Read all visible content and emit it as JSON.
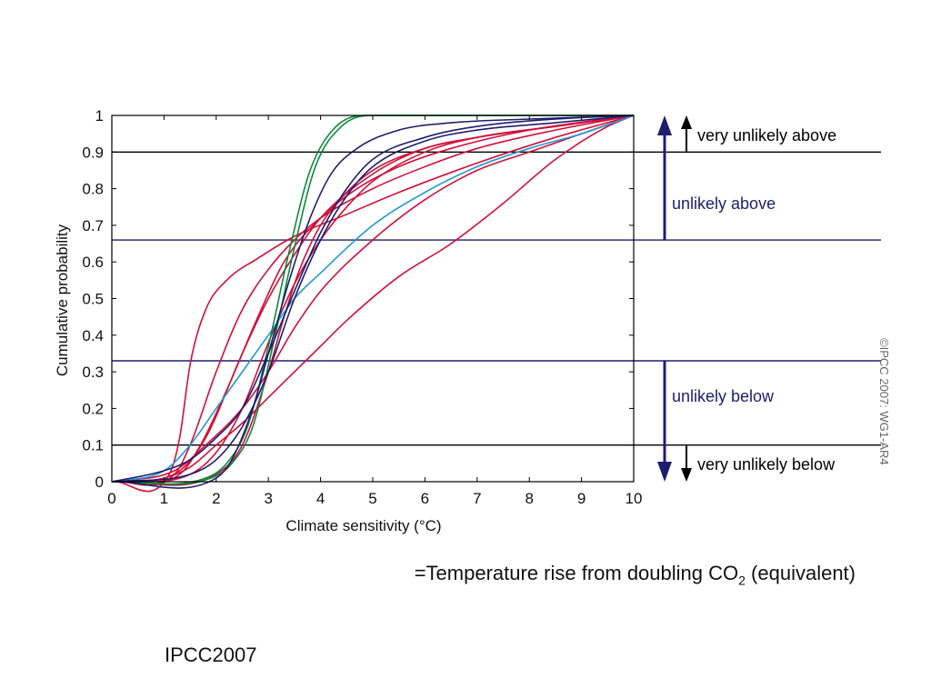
{
  "chart_data": {
    "type": "line",
    "xlabel": "Climate sensitivity (°C)",
    "ylabel": "Cumulative probability",
    "xlim": [
      0,
      10
    ],
    "ylim": [
      0,
      1
    ],
    "x_ticks": [
      "0",
      "1",
      "2",
      "3",
      "4",
      "5",
      "6",
      "7",
      "8",
      "9",
      "10"
    ],
    "y_ticks": [
      "0",
      "0.1",
      "0.2",
      "0.3",
      "0.4",
      "0.5",
      "0.6",
      "0.7",
      "0.8",
      "0.9",
      "1"
    ],
    "grid": false,
    "reference_lines": [
      {
        "y": 0.9,
        "color": "#000000"
      },
      {
        "y": 0.66,
        "color": "#1f1d6e"
      },
      {
        "y": 0.33,
        "color": "#1f1d6e"
      },
      {
        "y": 0.1,
        "color": "#000000"
      }
    ],
    "zones": {
      "very_unlikely_above": "very unlikely above",
      "unlikely_above": "unlikely above",
      "unlikely_below": "unlikely below",
      "very_unlikely_below": "very unlikely below"
    },
    "series": [
      {
        "color": "#d0103a",
        "x": [
          0,
          1.1,
          1.3,
          1.5,
          1.8,
          2.2,
          2.8,
          3.5,
          4.5,
          5.5,
          7,
          8.5,
          10
        ],
        "y": [
          0,
          0.02,
          0.12,
          0.32,
          0.47,
          0.55,
          0.61,
          0.67,
          0.73,
          0.79,
          0.87,
          0.94,
          1
        ]
      },
      {
        "color": "#d0103a",
        "x": [
          0,
          1.2,
          1.5,
          2,
          2.5,
          3,
          3.5,
          4,
          5,
          6,
          7,
          8.5,
          10
        ],
        "y": [
          0,
          0.02,
          0.1,
          0.3,
          0.47,
          0.58,
          0.66,
          0.72,
          0.8,
          0.86,
          0.91,
          0.96,
          1
        ]
      },
      {
        "color": "#d0103a",
        "x": [
          0,
          1.3,
          1.7,
          2.2,
          2.8,
          3.3,
          4,
          4.7,
          5.5,
          6.5,
          8,
          10
        ],
        "y": [
          0,
          0.02,
          0.1,
          0.25,
          0.45,
          0.6,
          0.72,
          0.8,
          0.86,
          0.91,
          0.96,
          1
        ]
      },
      {
        "color": "#d0103a",
        "x": [
          0,
          1.3,
          1.8,
          2.5,
          3,
          3.5,
          4,
          5,
          6,
          7,
          8.5,
          10
        ],
        "y": [
          0,
          0.03,
          0.12,
          0.35,
          0.5,
          0.62,
          0.72,
          0.84,
          0.91,
          0.94,
          0.97,
          1
        ]
      },
      {
        "color": "#d0103a",
        "x": [
          0,
          1.5,
          2,
          2.5,
          3,
          3.5,
          4,
          4.5,
          5,
          6,
          7,
          8.5,
          10
        ],
        "y": [
          0,
          0.02,
          0.08,
          0.2,
          0.38,
          0.54,
          0.66,
          0.75,
          0.82,
          0.9,
          0.94,
          0.97,
          1
        ]
      },
      {
        "color": "#d0103a",
        "x": [
          0,
          1.2,
          1.8,
          2.5,
          3,
          3.5,
          4,
          5,
          6,
          7,
          8,
          9,
          10
        ],
        "y": [
          0,
          0.03,
          0.1,
          0.2,
          0.3,
          0.42,
          0.52,
          0.66,
          0.77,
          0.85,
          0.9,
          0.95,
          1
        ]
      },
      {
        "color": "#d0103a",
        "x": [
          0,
          1,
          1.5,
          2,
          2.5,
          3,
          3.5,
          4,
          4.5,
          5.5,
          6.5,
          7.5,
          8.5,
          9.5,
          10
        ],
        "y": [
          0,
          0.01,
          0.04,
          0.1,
          0.16,
          0.23,
          0.3,
          0.37,
          0.44,
          0.56,
          0.65,
          0.76,
          0.88,
          0.97,
          1
        ]
      },
      {
        "color": "#d0103a",
        "x": [
          0,
          2,
          2.5,
          3,
          3.3,
          3.6,
          4,
          4.5,
          5,
          6,
          7,
          8.5,
          10
        ],
        "y": [
          0,
          0.02,
          0.1,
          0.3,
          0.45,
          0.58,
          0.7,
          0.79,
          0.85,
          0.91,
          0.94,
          0.97,
          1
        ]
      },
      {
        "color": "#1f9ad6",
        "x": [
          0,
          1,
          1.5,
          2,
          2.5,
          3,
          3.5,
          4,
          5,
          6,
          7,
          8,
          9,
          10
        ],
        "y": [
          0,
          0.03,
          0.1,
          0.2,
          0.3,
          0.4,
          0.5,
          0.57,
          0.7,
          0.79,
          0.86,
          0.91,
          0.95,
          1
        ]
      },
      {
        "color": "#0d8a3c",
        "x": [
          0,
          1.8,
          2.2,
          2.6,
          3,
          3.4,
          3.8,
          4.3,
          5,
          6,
          10
        ],
        "y": [
          0,
          0.01,
          0.05,
          0.15,
          0.37,
          0.63,
          0.85,
          0.97,
          1,
          1,
          1
        ]
      },
      {
        "color": "#0d8a3c",
        "x": [
          0,
          1.9,
          2.3,
          2.7,
          3.1,
          3.5,
          3.9,
          4.4,
          5,
          6,
          10
        ],
        "y": [
          0,
          0.01,
          0.05,
          0.15,
          0.38,
          0.64,
          0.86,
          0.97,
          1,
          1,
          1
        ]
      },
      {
        "color": "#1f1d6e",
        "x": [
          0,
          2,
          2.3,
          2.7,
          3,
          3.4,
          3.8,
          4.2,
          4.7,
          5.5,
          6.5,
          8,
          10
        ],
        "y": [
          0,
          0.01,
          0.06,
          0.2,
          0.35,
          0.55,
          0.72,
          0.84,
          0.91,
          0.96,
          0.98,
          0.99,
          1
        ]
      },
      {
        "color": "#1f1d6e",
        "x": [
          0,
          1.5,
          2,
          2.5,
          3,
          3.5,
          4,
          4.5,
          5,
          6,
          7,
          8.5,
          10
        ],
        "y": [
          0,
          0.02,
          0.06,
          0.15,
          0.3,
          0.5,
          0.66,
          0.78,
          0.86,
          0.93,
          0.96,
          0.98,
          1
        ]
      },
      {
        "color": "#1f1d6e",
        "x": [
          0,
          1,
          1.5,
          2,
          2.5,
          3,
          3.5,
          4,
          4.5,
          5,
          6,
          7,
          8.5,
          10
        ],
        "y": [
          0,
          0.03,
          0.06,
          0.12,
          0.2,
          0.35,
          0.52,
          0.68,
          0.8,
          0.88,
          0.94,
          0.97,
          0.99,
          1
        ]
      }
    ]
  },
  "copyright": "©IPCC 2007: WG1-AR4",
  "caption": {
    "prefix": "=Temperature rise from doubling CO",
    "subscript": "2",
    "suffix": " (equivalent)"
  },
  "source": "IPCC2007",
  "colors": {
    "navy": "#1f1d6e",
    "red": "#d0103a",
    "green": "#0d8a3c",
    "blue": "#1f9ad6",
    "black": "#000000"
  }
}
